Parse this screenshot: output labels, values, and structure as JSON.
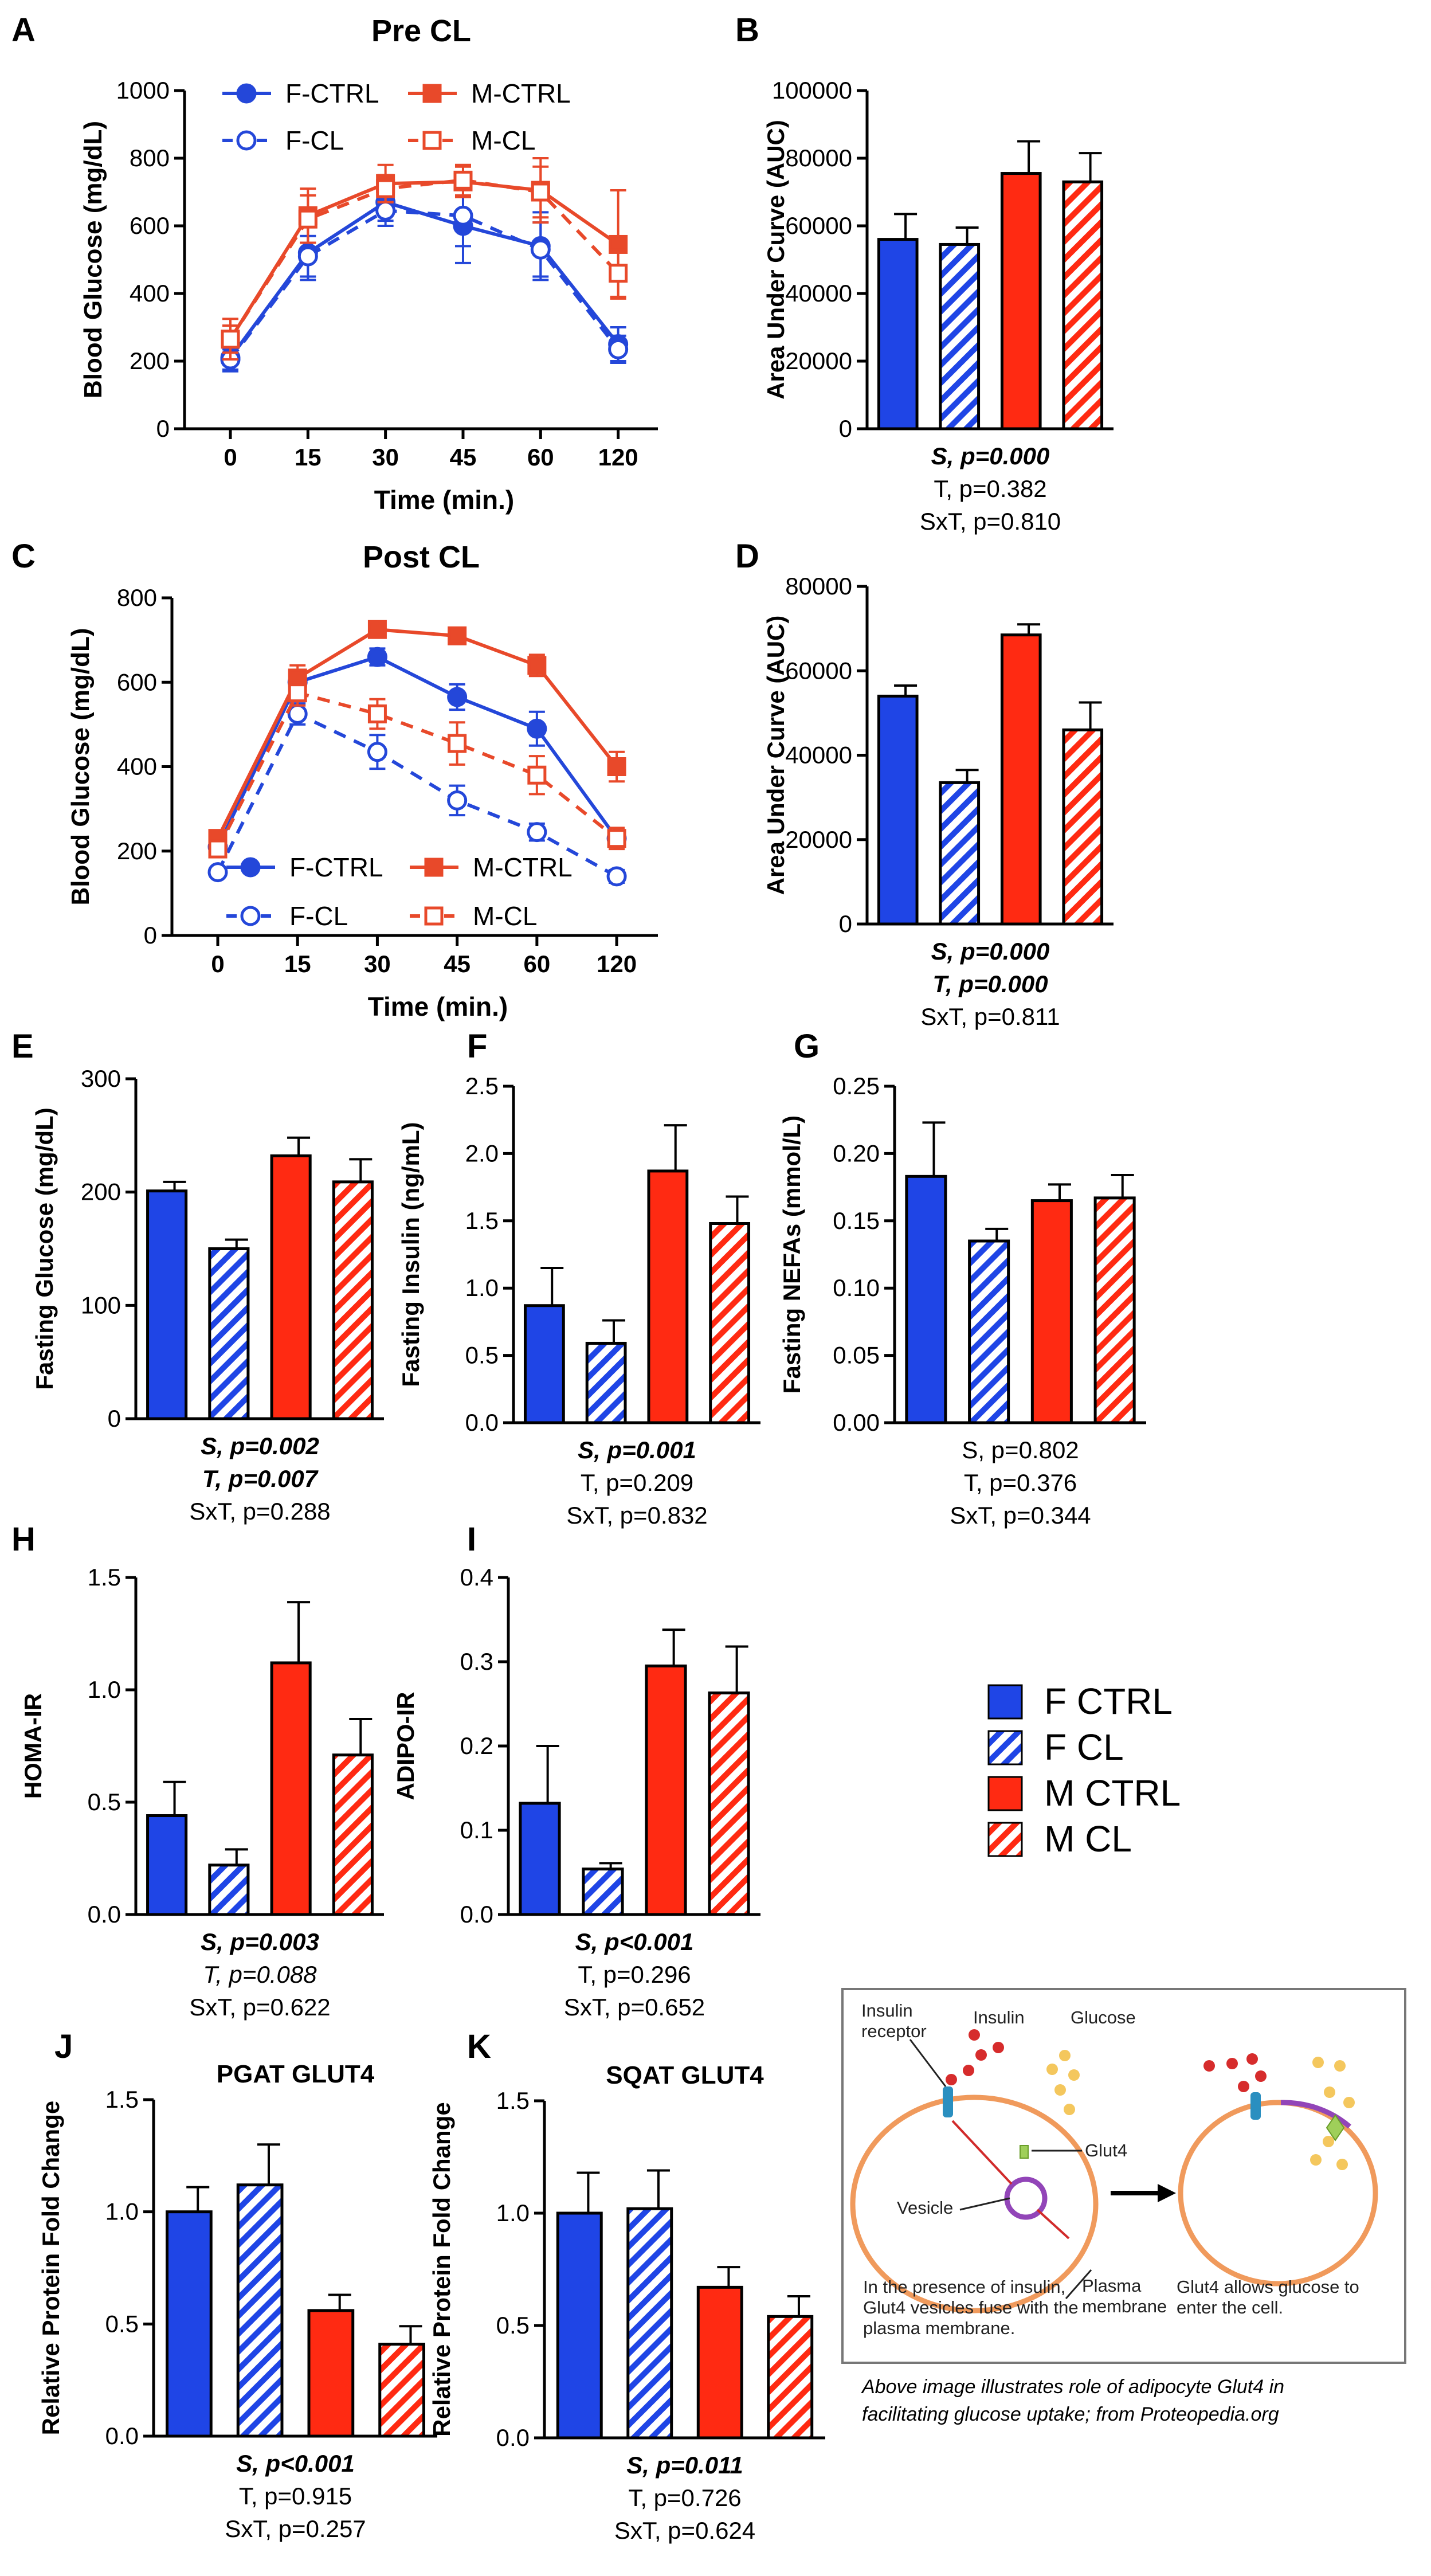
{
  "colors": {
    "female": "#1f45e6",
    "male": "#ff2a12",
    "line_female": "#2447d9",
    "line_male": "#e8492a",
    "axis": "#000000"
  },
  "legend": {
    "items": [
      "F CTRL",
      "F CL",
      "M CTRL",
      "M CL"
    ]
  },
  "chart_data": [
    {
      "panel": "A",
      "type": "line",
      "title": "Pre CL",
      "xlabel": "Time (min.)",
      "ylabel": "Blood Glucose (mg/dL)",
      "categories": [
        "0",
        "15",
        "30",
        "45",
        "60",
        "120"
      ],
      "ylim": [
        0,
        1000
      ],
      "yticks": [
        "0",
        "200",
        "400",
        "600",
        "800",
        "1000"
      ],
      "legend_position": "top",
      "series": [
        {
          "name": "F-CTRL",
          "values": [
            210,
            520,
            670,
            600,
            540,
            250
          ],
          "err": [
            40,
            80,
            55,
            110,
            100,
            50
          ]
        },
        {
          "name": "F-CL",
          "values": [
            205,
            510,
            645,
            630,
            530,
            235
          ],
          "err": [
            30,
            60,
            45,
            90,
            80,
            40
          ]
        },
        {
          "name": "M-CTRL",
          "values": [
            265,
            630,
            725,
            730,
            705,
            545
          ],
          "err": [
            60,
            80,
            55,
            45,
            95,
            160
          ]
        },
        {
          "name": "M-CL",
          "values": [
            265,
            620,
            710,
            735,
            700,
            460
          ],
          "err": [
            40,
            70,
            40,
            45,
            75,
            70
          ]
        }
      ]
    },
    {
      "panel": "B",
      "type": "bar",
      "ylabel": "Area Under Curve (AUC)",
      "categories": [
        "F CTRL",
        "F CL",
        "M CTRL",
        "M CL"
      ],
      "values": [
        56000,
        54500,
        75500,
        73000
      ],
      "err": [
        7500,
        5000,
        9500,
        8500
      ],
      "ylim": [
        0,
        100000
      ],
      "yticks": [
        "0",
        "20000",
        "40000",
        "60000",
        "80000",
        "100000"
      ],
      "stats": [
        {
          "text": "S, p=0.000",
          "style": "bold-italic"
        },
        {
          "text": "T, p=0.382",
          "style": "normal"
        },
        {
          "text": "SxT, p=0.810",
          "style": "normal"
        }
      ]
    },
    {
      "panel": "C",
      "type": "line",
      "title": "Post CL",
      "xlabel": "Time (min.)",
      "ylabel": "Blood Glucose (mg/dL)",
      "categories": [
        "0",
        "15",
        "30",
        "45",
        "60",
        "120"
      ],
      "ylim": [
        0,
        800
      ],
      "yticks": [
        "0",
        "200",
        "400",
        "600",
        "800"
      ],
      "legend_position": "bottom",
      "series": [
        {
          "name": "F-CTRL",
          "values": [
            210,
            600,
            660,
            565,
            490,
            230
          ],
          "err": [
            15,
            25,
            20,
            30,
            40,
            15
          ]
        },
        {
          "name": "F-CL",
          "values": [
            150,
            525,
            435,
            320,
            245,
            140
          ],
          "err": [
            10,
            25,
            40,
            35,
            20,
            15
          ]
        },
        {
          "name": "M-CTRL",
          "values": [
            230,
            610,
            725,
            710,
            640,
            400
          ],
          "err": [
            15,
            30,
            12,
            15,
            25,
            35
          ]
        },
        {
          "name": "M-CL",
          "values": [
            205,
            575,
            525,
            455,
            380,
            230
          ],
          "err": [
            15,
            30,
            35,
            50,
            45,
            25
          ]
        }
      ]
    },
    {
      "panel": "D",
      "type": "bar",
      "ylabel": "Area Under Curve (AUC)",
      "categories": [
        "F CTRL",
        "F CL",
        "M CTRL",
        "M CL"
      ],
      "values": [
        54000,
        33500,
        68500,
        46000
      ],
      "err": [
        2500,
        3000,
        2500,
        6500
      ],
      "ylim": [
        0,
        80000
      ],
      "yticks": [
        "0",
        "20000",
        "40000",
        "60000",
        "80000"
      ],
      "stats": [
        {
          "text": "S, p=0.000",
          "style": "bold-italic"
        },
        {
          "text": "T, p=0.000",
          "style": "bold-italic"
        },
        {
          "text": "SxT, p=0.811",
          "style": "normal"
        }
      ]
    },
    {
      "panel": "E",
      "type": "bar",
      "ylabel": "Fasting Glucose (mg/dL)",
      "categories": [
        "F CTRL",
        "F CL",
        "M CTRL",
        "M CL"
      ],
      "values": [
        201,
        150,
        232,
        209
      ],
      "err": [
        8,
        8,
        16,
        20
      ],
      "ylim": [
        0,
        300
      ],
      "yticks": [
        "0",
        "100",
        "200",
        "300"
      ],
      "stats": [
        {
          "text": "S, p=0.002",
          "style": "bold-italic"
        },
        {
          "text": "T, p=0.007",
          "style": "bold-italic"
        },
        {
          "text": "SxT, p=0.288",
          "style": "normal"
        }
      ]
    },
    {
      "panel": "F",
      "type": "bar",
      "ylabel": "Fasting Insulin (ng/mL)",
      "categories": [
        "F CTRL",
        "F CL",
        "M CTRL",
        "M CL"
      ],
      "values": [
        0.87,
        0.59,
        1.87,
        1.48
      ],
      "err": [
        0.28,
        0.17,
        0.34,
        0.2
      ],
      "ylim": [
        0,
        2.5
      ],
      "yticks": [
        "0.0",
        "0.5",
        "1.0",
        "1.5",
        "2.0",
        "2.5"
      ],
      "stats": [
        {
          "text": "S, p=0.001",
          "style": "bold-italic"
        },
        {
          "text": "T, p=0.209",
          "style": "normal"
        },
        {
          "text": "SxT, p=0.832",
          "style": "normal"
        }
      ]
    },
    {
      "panel": "G",
      "type": "bar",
      "ylabel": "Fasting NEFAs (mmol/L)",
      "categories": [
        "F CTRL",
        "F CL",
        "M CTRL",
        "M CL"
      ],
      "values": [
        0.183,
        0.135,
        0.165,
        0.167
      ],
      "err": [
        0.04,
        0.009,
        0.012,
        0.017
      ],
      "ylim": [
        0,
        0.25
      ],
      "yticks": [
        "0.00",
        "0.05",
        "0.10",
        "0.15",
        "0.20",
        "0.25"
      ],
      "stats": [
        {
          "text": "S, p=0.802",
          "style": "normal"
        },
        {
          "text": "T, p=0.376",
          "style": "normal"
        },
        {
          "text": "SxT, p=0.344",
          "style": "normal"
        }
      ]
    },
    {
      "panel": "H",
      "type": "bar",
      "ylabel": "HOMA-IR",
      "categories": [
        "F CTRL",
        "F CL",
        "M CTRL",
        "M CL"
      ],
      "values": [
        0.44,
        0.22,
        1.12,
        0.71
      ],
      "err": [
        0.15,
        0.07,
        0.27,
        0.16
      ],
      "ylim": [
        0,
        1.5
      ],
      "yticks": [
        "0.0",
        "0.5",
        "1.0",
        "1.5"
      ],
      "stats": [
        {
          "text": "S, p=0.003",
          "style": "bold-italic"
        },
        {
          "text": "T, p=0.088",
          "style": "italic"
        },
        {
          "text": "SxT, p=0.622",
          "style": "normal"
        }
      ]
    },
    {
      "panel": "I",
      "type": "bar",
      "ylabel": "ADIPO-IR",
      "categories": [
        "F CTRL",
        "F CL",
        "M CTRL",
        "M CL"
      ],
      "values": [
        0.132,
        0.054,
        0.295,
        0.263
      ],
      "err": [
        0.068,
        0.007,
        0.043,
        0.055
      ],
      "ylim": [
        0,
        0.4
      ],
      "yticks": [
        "0.0",
        "0.1",
        "0.2",
        "0.3",
        "0.4"
      ],
      "stats": [
        {
          "text": "S, p<0.001",
          "style": "bold-italic"
        },
        {
          "text": "T, p=0.296",
          "style": "normal"
        },
        {
          "text": "SxT, p=0.652",
          "style": "normal"
        }
      ]
    },
    {
      "panel": "J",
      "type": "bar",
      "title": "PGAT GLUT4",
      "ylabel": "Relative Protein Fold Change",
      "categories": [
        "F CTRL",
        "F CL",
        "M CTRL",
        "M CL"
      ],
      "values": [
        1.0,
        1.12,
        0.56,
        0.41
      ],
      "err": [
        0.11,
        0.18,
        0.07,
        0.08
      ],
      "ylim": [
        0,
        1.5
      ],
      "yticks": [
        "0.0",
        "0.5",
        "1.0",
        "1.5"
      ],
      "stats": [
        {
          "text": "S, p<0.001",
          "style": "bold-italic"
        },
        {
          "text": "T, p=0.915",
          "style": "normal"
        },
        {
          "text": "SxT, p=0.257",
          "style": "normal"
        }
      ]
    },
    {
      "panel": "K",
      "type": "bar",
      "title": "SQAT GLUT4",
      "ylabel": "Relative Protein Fold Change",
      "categories": [
        "F CTRL",
        "F CL",
        "M CTRL",
        "M CL"
      ],
      "values": [
        1.0,
        1.02,
        0.67,
        0.54
      ],
      "err": [
        0.18,
        0.17,
        0.09,
        0.09
      ],
      "ylim": [
        0,
        1.5
      ],
      "yticks": [
        "0.0",
        "0.5",
        "1.0",
        "1.5"
      ],
      "stats": [
        {
          "text": "S, p=0.011",
          "style": "bold-italic"
        },
        {
          "text": "T, p=0.726",
          "style": "normal"
        },
        {
          "text": "SxT, p=0.624",
          "style": "normal"
        }
      ]
    }
  ],
  "diagram": {
    "labels": {
      "insulin_receptor": [
        "Insulin",
        "receptor"
      ],
      "insulin": "Insulin",
      "glucose": "Glucose",
      "glut4": "Glut4",
      "vesicle": "Vesicle",
      "plasma_membrane": [
        "Plasma",
        "membrane"
      ]
    },
    "note_left": [
      "In the presence of insulin,",
      "Glut4 vesicles fuse with the",
      "plasma membrane."
    ],
    "note_right": [
      "Glut4 allows glucose to",
      "enter the cell."
    ]
  },
  "caption": {
    "line1": "Above image illustrates role of adipocyte Glut4 in",
    "line2": "facilitating glucose uptake;  from Proteopedia.org"
  }
}
